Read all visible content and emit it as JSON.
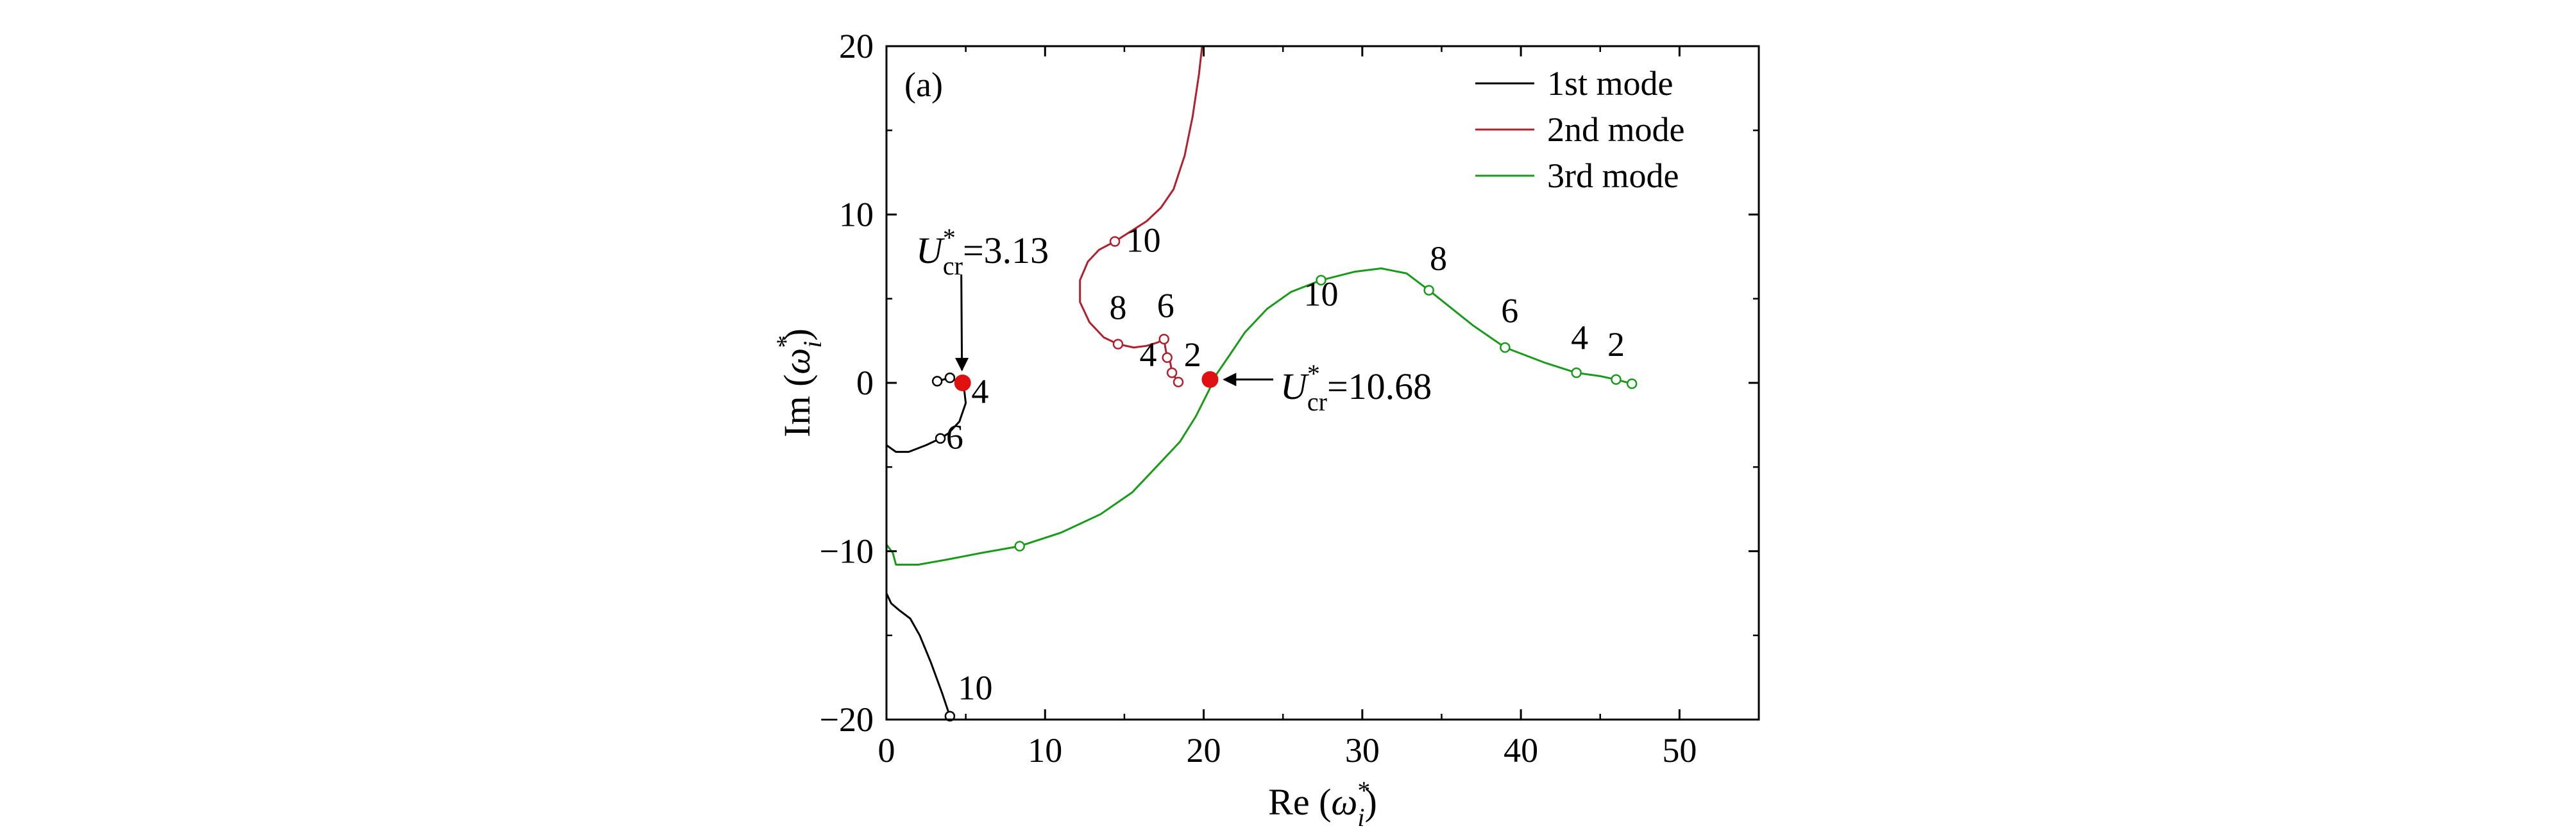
{
  "chart_data": {
    "type": "line",
    "panel_label": "(a)",
    "xlabel": {
      "prefix": "Re (",
      "symbol": "ω",
      "sup": "*",
      "sub": "i",
      "suffix": ")"
    },
    "ylabel": {
      "prefix": "Im (",
      "symbol": "ω",
      "sup": "*",
      "sub": "i",
      "suffix": ")"
    },
    "xlim": [
      0,
      55
    ],
    "ylim": [
      -20,
      20
    ],
    "xticks": [
      0,
      10,
      20,
      30,
      40,
      50
    ],
    "yticks": [
      -20,
      -10,
      0,
      10,
      20
    ],
    "xtick_labels": [
      "0",
      "10",
      "20",
      "30",
      "40",
      "50"
    ],
    "ytick_labels": [
      "−20",
      "−10",
      "0",
      "10",
      "20"
    ],
    "grid": false,
    "legend_position": "top-right",
    "series": [
      {
        "name": "1st mode",
        "color": "#000000",
        "branches": [
          [
            [
              3.2,
              0.1
            ],
            [
              4.0,
              0.3
            ],
            [
              4.5,
              0.1
            ],
            [
              4.9,
              -0.4
            ],
            [
              5.0,
              -1.2
            ],
            [
              4.6,
              -2.3
            ],
            [
              3.9,
              -3.0
            ],
            [
              3.4,
              -3.3
            ],
            [
              2.5,
              -3.7
            ],
            [
              1.4,
              -4.1
            ],
            [
              0.6,
              -4.1
            ],
            [
              0.0,
              -3.7
            ]
          ],
          [
            [
              0.0,
              -12.5
            ],
            [
              0.3,
              -13.1
            ],
            [
              0.8,
              -13.5
            ],
            [
              1.5,
              -14.0
            ],
            [
              2.1,
              -15.0
            ],
            [
              2.8,
              -16.6
            ],
            [
              3.5,
              -18.4
            ],
            [
              4.0,
              -19.8
            ],
            [
              4.2,
              -20.0
            ]
          ]
        ],
        "markers": [
          [
            3.2,
            0.1
          ],
          [
            4.0,
            0.3
          ],
          [
            3.4,
            -3.3
          ],
          [
            4.0,
            -19.8
          ]
        ]
      },
      {
        "name": "2nd mode",
        "color": "#b0202e",
        "branches": [
          [
            [
              18.4,
              0.05
            ],
            [
              18.0,
              0.6
            ],
            [
              17.9,
              1.2
            ],
            [
              17.7,
              1.5
            ],
            [
              17.6,
              2.0
            ],
            [
              17.5,
              2.6
            ],
            [
              17.1,
              2.4
            ],
            [
              16.4,
              2.2
            ],
            [
              15.6,
              2.1
            ],
            [
              14.6,
              2.3
            ],
            [
              13.7,
              2.7
            ],
            [
              12.8,
              3.6
            ],
            [
              12.2,
              4.8
            ],
            [
              12.2,
              6.1
            ],
            [
              12.7,
              7.2
            ],
            [
              13.4,
              7.9
            ],
            [
              14.4,
              8.4
            ],
            [
              15.4,
              9.0
            ],
            [
              16.4,
              9.6
            ],
            [
              17.3,
              10.4
            ],
            [
              18.1,
              11.5
            ],
            [
              18.8,
              13.5
            ],
            [
              19.3,
              15.8
            ],
            [
              19.7,
              18.3
            ],
            [
              19.9,
              20.0
            ]
          ]
        ],
        "markers": [
          [
            18.4,
            0.05
          ],
          [
            18.0,
            0.6
          ],
          [
            17.7,
            1.5
          ],
          [
            17.5,
            2.6
          ],
          [
            14.6,
            2.3
          ],
          [
            14.4,
            8.4
          ]
        ]
      },
      {
        "name": "3rd mode",
        "color": "#1a9a1a",
        "branches": [
          [
            [
              47.0,
              -0.05
            ],
            [
              46.0,
              0.2
            ],
            [
              45.0,
              0.4
            ],
            [
              43.5,
              0.6
            ],
            [
              41.5,
              1.2
            ],
            [
              39.0,
              2.1
            ],
            [
              37.0,
              3.4
            ],
            [
              34.2,
              5.5
            ],
            [
              32.8,
              6.5
            ],
            [
              31.2,
              6.8
            ],
            [
              29.5,
              6.6
            ],
            [
              27.4,
              6.1
            ],
            [
              25.5,
              5.4
            ],
            [
              24.0,
              4.4
            ],
            [
              22.6,
              3.0
            ],
            [
              21.6,
              1.6
            ],
            [
              20.8,
              0.5
            ],
            [
              20.3,
              -0.5
            ],
            [
              19.5,
              -2.0
            ],
            [
              18.5,
              -3.5
            ],
            [
              17.0,
              -5.0
            ],
            [
              15.5,
              -6.5
            ],
            [
              13.5,
              -7.8
            ],
            [
              11.0,
              -8.9
            ],
            [
              8.4,
              -9.7
            ],
            [
              6.0,
              -10.1
            ],
            [
              3.8,
              -10.5
            ],
            [
              2.0,
              -10.8
            ],
            [
              0.6,
              -10.8
            ],
            [
              0.4,
              -10.1
            ],
            [
              0.0,
              -9.6
            ]
          ]
        ],
        "markers": [
          [
            47.0,
            -0.05
          ],
          [
            46.0,
            0.2
          ],
          [
            43.5,
            0.6
          ],
          [
            39.0,
            2.1
          ],
          [
            34.2,
            5.5
          ],
          [
            27.4,
            6.1
          ],
          [
            8.4,
            -9.7
          ]
        ]
      }
    ],
    "extra_lines": [
      {
        "color": "#1a9a1a",
        "points": [
          [
            0.0,
            0.0
          ],
          [
            0.0,
            -20.0
          ]
        ]
      }
    ],
    "point_labels": [
      {
        "text": "4",
        "x": 5.9,
        "y": -1.2
      },
      {
        "text": "6",
        "x": 4.3,
        "y": -3.9
      },
      {
        "text": "10",
        "x": 5.6,
        "y": -18.8
      },
      {
        "text": "10",
        "x": 16.2,
        "y": 7.8
      },
      {
        "text": "8",
        "x": 14.6,
        "y": 3.8
      },
      {
        "text": "6",
        "x": 17.6,
        "y": 3.9
      },
      {
        "text": "4",
        "x": 16.5,
        "y": 1.0
      },
      {
        "text": "2",
        "x": 19.3,
        "y": 1.0
      },
      {
        "text": "10",
        "x": 27.4,
        "y": 4.6
      },
      {
        "text": "8",
        "x": 34.8,
        "y": 6.7
      },
      {
        "text": "6",
        "x": 39.3,
        "y": 3.6
      },
      {
        "text": "4",
        "x": 43.7,
        "y": 2.0
      },
      {
        "text": "2",
        "x": 46.0,
        "y": 1.6
      }
    ],
    "critical_points": [
      {
        "x": 4.8,
        "y": 0.0,
        "label_main": "U",
        "label_sub": "cr",
        "label_sup": "*",
        "label_value": "=3.13"
      },
      {
        "x": 20.4,
        "y": 0.2,
        "label_main": "U",
        "label_sub": "cr",
        "label_sup": "*",
        "label_value": "=10.68"
      }
    ],
    "marker_color": "#e01010"
  }
}
